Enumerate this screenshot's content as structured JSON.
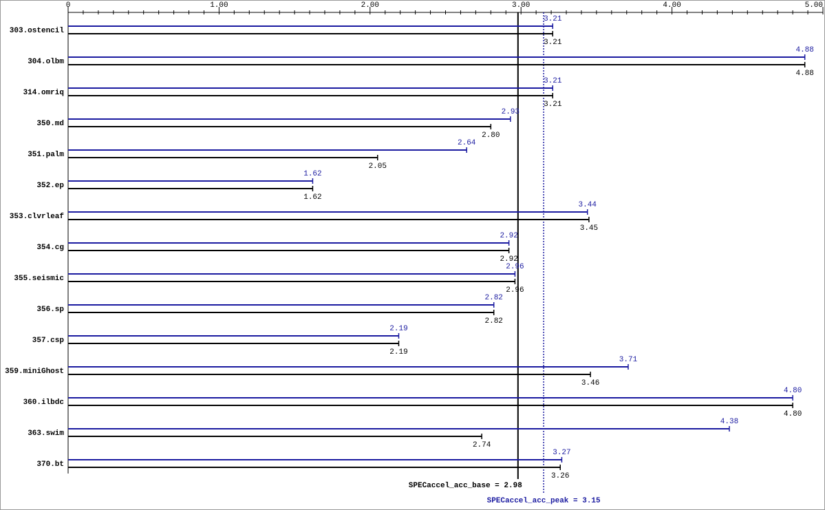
{
  "chart_data": {
    "type": "bar",
    "orientation": "horizontal",
    "categories": [
      "303.ostencil",
      "304.olbm",
      "314.omriq",
      "350.md",
      "351.palm",
      "352.ep",
      "353.clvrleaf",
      "354.cg",
      "355.seismic",
      "356.sp",
      "357.csp",
      "359.miniGhost",
      "360.ilbdc",
      "363.swim",
      "370.bt"
    ],
    "series": [
      {
        "name": "peak",
        "color": "#1a1aa0",
        "values": [
          3.21,
          4.88,
          3.21,
          2.93,
          2.64,
          1.62,
          3.44,
          2.92,
          2.96,
          2.82,
          2.19,
          3.71,
          4.8,
          4.38,
          3.27
        ],
        "value_labels": [
          "3.21",
          "4.88",
          "3.21",
          "2.93",
          "2.64",
          "1.62",
          "3.44",
          "2.92",
          "2.96",
          "2.82",
          "2.19",
          "3.71",
          "4.80",
          "4.38",
          "3.27"
        ]
      },
      {
        "name": "base",
        "color": "#000000",
        "values": [
          3.21,
          4.88,
          3.21,
          2.8,
          2.05,
          1.62,
          3.45,
          2.92,
          2.96,
          2.82,
          2.19,
          3.46,
          4.8,
          2.74,
          3.26
        ],
        "value_labels": [
          "3.21",
          "4.88",
          "3.21",
          "2.80",
          "2.05",
          "1.62",
          "3.45",
          "2.92",
          "2.96",
          "2.82",
          "2.19",
          "3.46",
          "4.80",
          "2.74",
          "3.26"
        ]
      }
    ],
    "xlim": [
      0,
      5
    ],
    "xticks": [
      0,
      {
        "value": 1,
        "label": "1.00"
      },
      {
        "value": 2,
        "label": "2.00"
      },
      {
        "value": 3,
        "label": "3.00"
      },
      {
        "value": 4,
        "label": "4.00"
      },
      {
        "value": 5,
        "label": "5.00"
      }
    ],
    "xminorticks": [
      0.1,
      0.2,
      0.3,
      0.4,
      0.5,
      0.6,
      0.7,
      0.8,
      0.9,
      1.1,
      1.2,
      1.3,
      1.4,
      1.5,
      1.6,
      1.7,
      1.8,
      1.9,
      2.1,
      2.2,
      2.3,
      2.4,
      2.5,
      2.6,
      2.7,
      2.8,
      2.9,
      3.1,
      3.2,
      3.3,
      3.4,
      3.5,
      3.6,
      3.7,
      3.8,
      3.9,
      4.1,
      4.2,
      4.3,
      4.4,
      4.5,
      4.6,
      4.7,
      4.8,
      4.9
    ],
    "reference_lines": [
      {
        "label": "SPECaccel_acc_base = 2.98",
        "value": 2.98,
        "color": "#000000",
        "dashed": false
      },
      {
        "label": "SPECaccel_acc_peak = 3.15",
        "value": 3.15,
        "color": "#1a1aa0",
        "dashed": true
      }
    ]
  }
}
